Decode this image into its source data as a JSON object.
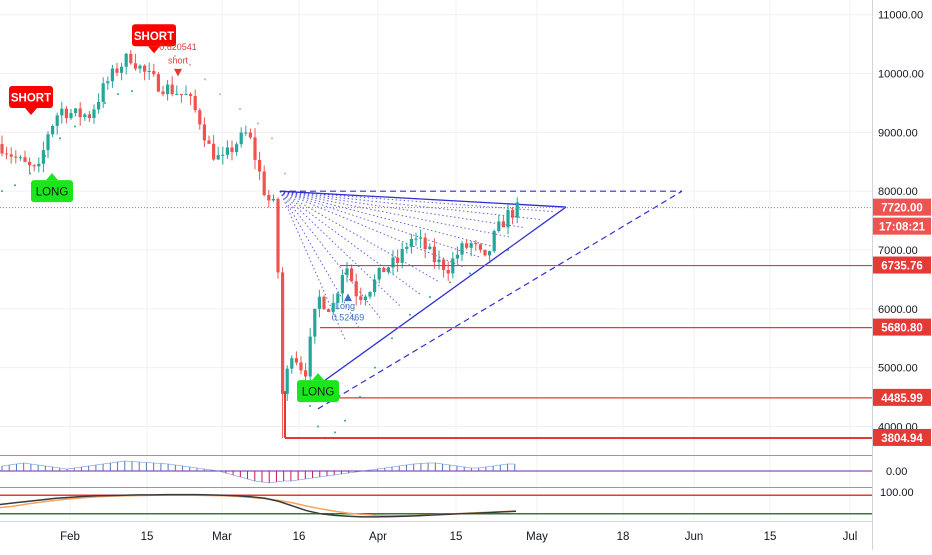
{
  "chart_data": {
    "type": "candlestick",
    "price_axis": {
      "ticks": [
        {
          "value": 11000,
          "label": "11000.00"
        },
        {
          "value": 10000,
          "label": "10000.00"
        },
        {
          "value": 9000,
          "label": "9000.00"
        },
        {
          "value": 8000,
          "label": "8000.00"
        },
        {
          "value": 7000,
          "label": "7000.00"
        },
        {
          "value": 6000,
          "label": "6000.00"
        },
        {
          "value": 5000,
          "label": "5000.00"
        },
        {
          "value": 4000,
          "label": "4000.00"
        }
      ],
      "range": [
        3600,
        11250
      ]
    },
    "time_axis": {
      "ticks": [
        "Feb",
        "15",
        "Mar",
        "16",
        "Apr",
        "15",
        "May",
        "18",
        "Jun",
        "15",
        "Jul"
      ]
    },
    "current_price": {
      "value": 7720,
      "label": "7720.00"
    },
    "countdown": {
      "label": "17:08:21"
    },
    "levels": [
      {
        "value": 6735.76,
        "label": "6735.76"
      },
      {
        "value": 5680.8,
        "label": "5680.80"
      },
      {
        "value": 4485.99,
        "label": "4485.99"
      },
      {
        "value": 3804.94,
        "label": "3804.94"
      }
    ],
    "signals": [
      {
        "type": "short",
        "text": "SHORT",
        "price": 9600
      },
      {
        "type": "short",
        "text": "SHORT",
        "price": 10650
      },
      {
        "type": "long",
        "text": "LONG",
        "price": 8000
      },
      {
        "type": "long",
        "text": "LONG",
        "price": 4600
      }
    ],
    "annotations": [
      {
        "text": "0.620541",
        "price": 10400
      },
      {
        "text": "short",
        "price": 10170
      },
      {
        "text": "Long",
        "price": 6000
      },
      {
        "text": "0.52469",
        "price": 5800
      }
    ],
    "indicator1": {
      "zero_label": "0.00",
      "values": [
        0.5,
        0.6,
        0.7,
        0.8,
        0.7,
        0.6,
        0.5,
        0.4,
        0.3,
        0.2,
        0.3,
        0.4,
        0.5,
        0.6,
        0.7,
        0.8,
        0.9,
        1.0,
        0.95,
        0.9,
        0.85,
        0.8,
        0.75,
        0.7,
        0.6,
        0.5,
        0.4,
        0.3,
        0.2,
        0.1,
        0.0,
        -0.2,
        -0.4,
        -0.6,
        -0.8,
        -1.0,
        -1.1,
        -1.2,
        -1.1,
        -1.0,
        -1.0,
        -0.9,
        -0.8,
        -0.7,
        -0.6,
        -0.5,
        -0.4,
        -0.3,
        -0.2,
        -0.1,
        0.0,
        0.1,
        0.2,
        0.3,
        0.4,
        0.5,
        0.6,
        0.7,
        0.75,
        0.8,
        0.8,
        0.7,
        0.6,
        0.5,
        0.4,
        0.3,
        0.3,
        0.4,
        0.5,
        0.6,
        0.7,
        0.7
      ]
    },
    "indicator2": {
      "level_label": "100.00",
      "upper_level": 80,
      "lower_level": 20,
      "range": [
        0,
        100
      ],
      "line_dark": [
        50,
        55,
        60,
        65,
        70,
        73,
        76,
        78,
        79,
        80,
        81,
        81,
        82,
        82,
        82,
        81,
        80,
        78,
        75,
        70,
        60,
        45,
        30,
        20,
        15,
        12,
        10,
        10,
        11,
        12,
        14,
        16,
        18,
        20,
        22,
        24,
        26,
        28
      ],
      "line_orange": [
        40,
        45,
        52,
        58,
        64,
        68,
        72,
        75,
        77,
        78,
        79,
        80,
        80,
        80,
        80,
        79,
        78,
        76,
        73,
        69,
        63,
        55,
        45,
        36,
        28,
        22,
        18,
        15,
        14,
        14,
        15,
        17,
        19,
        21,
        23,
        25,
        27,
        29
      ]
    }
  }
}
